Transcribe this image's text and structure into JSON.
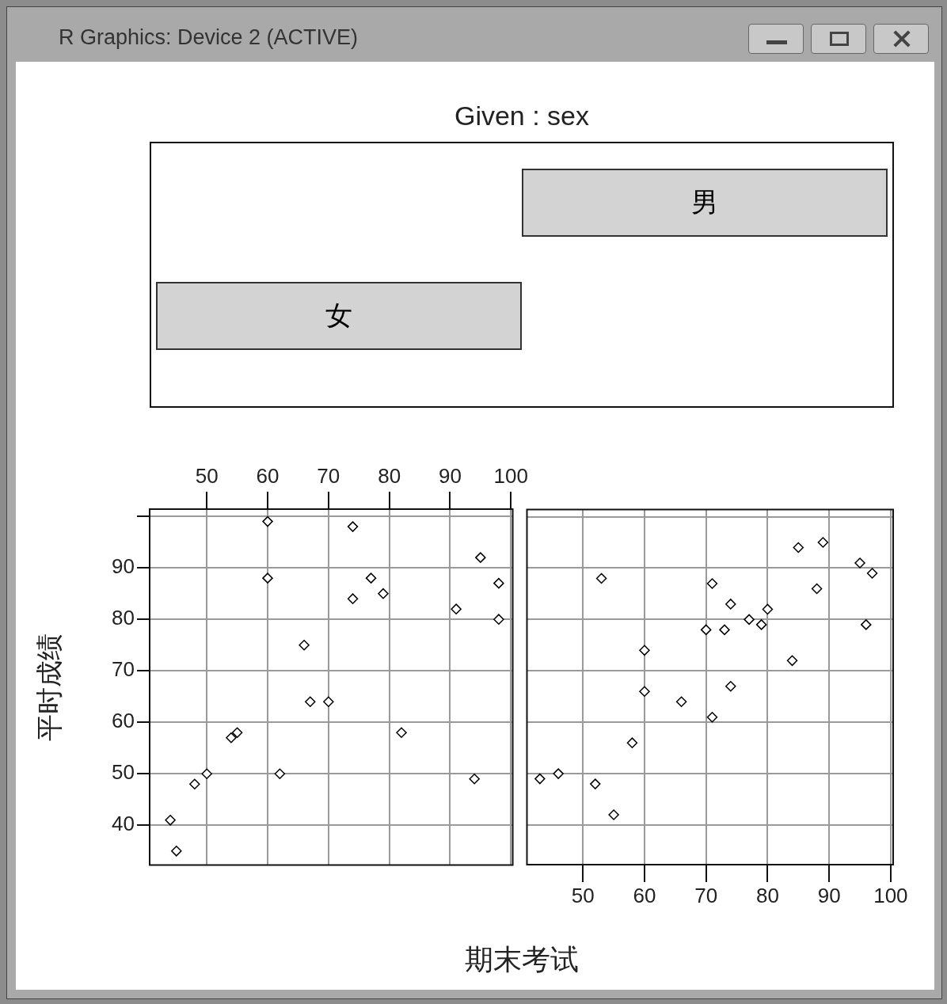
{
  "chart_data": [
    {
      "type": "other",
      "title": "Given : sex",
      "categories": [
        "女",
        "男"
      ],
      "annotations": [
        "R Graphics: Device 2 (ACTIVE)"
      ]
    },
    {
      "type": "scatter",
      "ylabel": "平时成绩",
      "marker": "diamond",
      "grid": true,
      "xlim": [
        40.6,
        100.3
      ],
      "ylim": [
        32.3,
        101.4
      ],
      "xticks": [
        50,
        60,
        70,
        80,
        90,
        100
      ],
      "yticks": [
        40,
        50,
        60,
        70,
        80,
        90,
        {
          "value": 100,
          "label": null
        }
      ],
      "series": [
        {
          "color": "#000000",
          "x": [
            44,
            45,
            48,
            50,
            54,
            55,
            60,
            60,
            62,
            66,
            67,
            70,
            74,
            74,
            77,
            79,
            82,
            91,
            94,
            95,
            98,
            98
          ],
          "values": [
            41,
            35,
            48,
            50,
            57,
            58,
            99,
            88,
            50,
            75,
            64,
            64,
            98,
            84,
            88,
            85,
            58,
            82,
            49,
            92,
            87,
            80
          ]
        }
      ]
    },
    {
      "type": "scatter",
      "xlabel": "期末考试",
      "marker": "diamond",
      "grid": true,
      "tick_labels": "x",
      "xlim": [
        40.9,
        100.4
      ],
      "ylim": [
        32.3,
        101.4
      ],
      "xticks": [
        50,
        60,
        70,
        80,
        90,
        100
      ],
      "yticks": [
        40,
        50,
        60,
        70,
        80,
        90,
        {
          "value": 100,
          "label": null
        }
      ],
      "series": [
        {
          "color": "#000000",
          "x": [
            43,
            46,
            52,
            53,
            55,
            58,
            60,
            60,
            66,
            70,
            71,
            71,
            73,
            74,
            74,
            77,
            79,
            80,
            84,
            85,
            88,
            89,
            95,
            96,
            97
          ],
          "values": [
            49,
            50,
            48,
            88,
            42,
            56,
            74,
            66,
            64,
            78,
            87,
            61,
            78,
            83,
            67,
            80,
            79,
            82,
            72,
            94,
            86,
            95,
            91,
            79,
            89
          ]
        }
      ]
    }
  ]
}
